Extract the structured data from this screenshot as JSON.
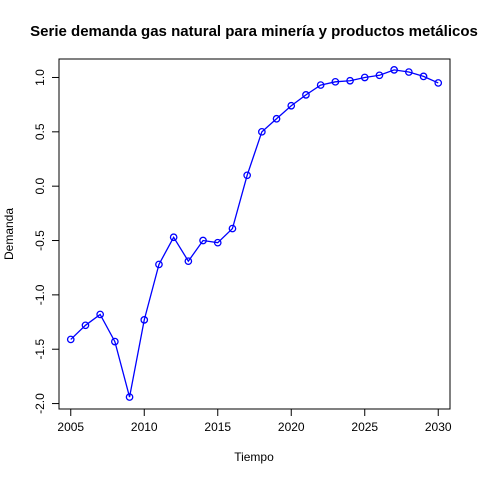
{
  "chart_data": {
    "type": "line",
    "title": "Serie demanda gas natural para minería y productos metálicos",
    "xlabel": "Tiempo",
    "ylabel": "Demanda",
    "xlim": [
      2004.2,
      2030.8
    ],
    "ylim": [
      -2.05,
      1.17
    ],
    "x_ticks": [
      2005,
      2010,
      2015,
      2020,
      2025,
      2030
    ],
    "y_ticks": [
      -2.0,
      -1.5,
      -1.0,
      -0.5,
      0.0,
      0.5,
      1.0
    ],
    "x_tick_labels": [
      "2005",
      "2010",
      "2015",
      "2020",
      "2025",
      "2030"
    ],
    "y_tick_labels": [
      "-2.0",
      "-1.5",
      "-1.0",
      "-0.5",
      "0.0",
      "0.5",
      "1.0"
    ],
    "grid": false,
    "series": [
      {
        "color": "#0000ff",
        "marker": "open-circle",
        "x": [
          2005,
          2006,
          2007,
          2008,
          2009,
          2010,
          2011,
          2012,
          2013,
          2014,
          2015,
          2016,
          2017,
          2018,
          2019,
          2020,
          2021,
          2022,
          2023,
          2024,
          2025,
          2026,
          2027,
          2028,
          2029,
          2030
        ],
        "y": [
          -1.41,
          -1.28,
          -1.18,
          -1.43,
          -1.94,
          -1.23,
          -0.72,
          -0.47,
          -0.69,
          -0.5,
          -0.52,
          -0.39,
          0.1,
          0.5,
          0.62,
          0.74,
          0.84,
          0.93,
          0.96,
          0.97,
          1.0,
          1.02,
          1.07,
          1.05,
          1.01,
          0.95
        ]
      }
    ]
  }
}
